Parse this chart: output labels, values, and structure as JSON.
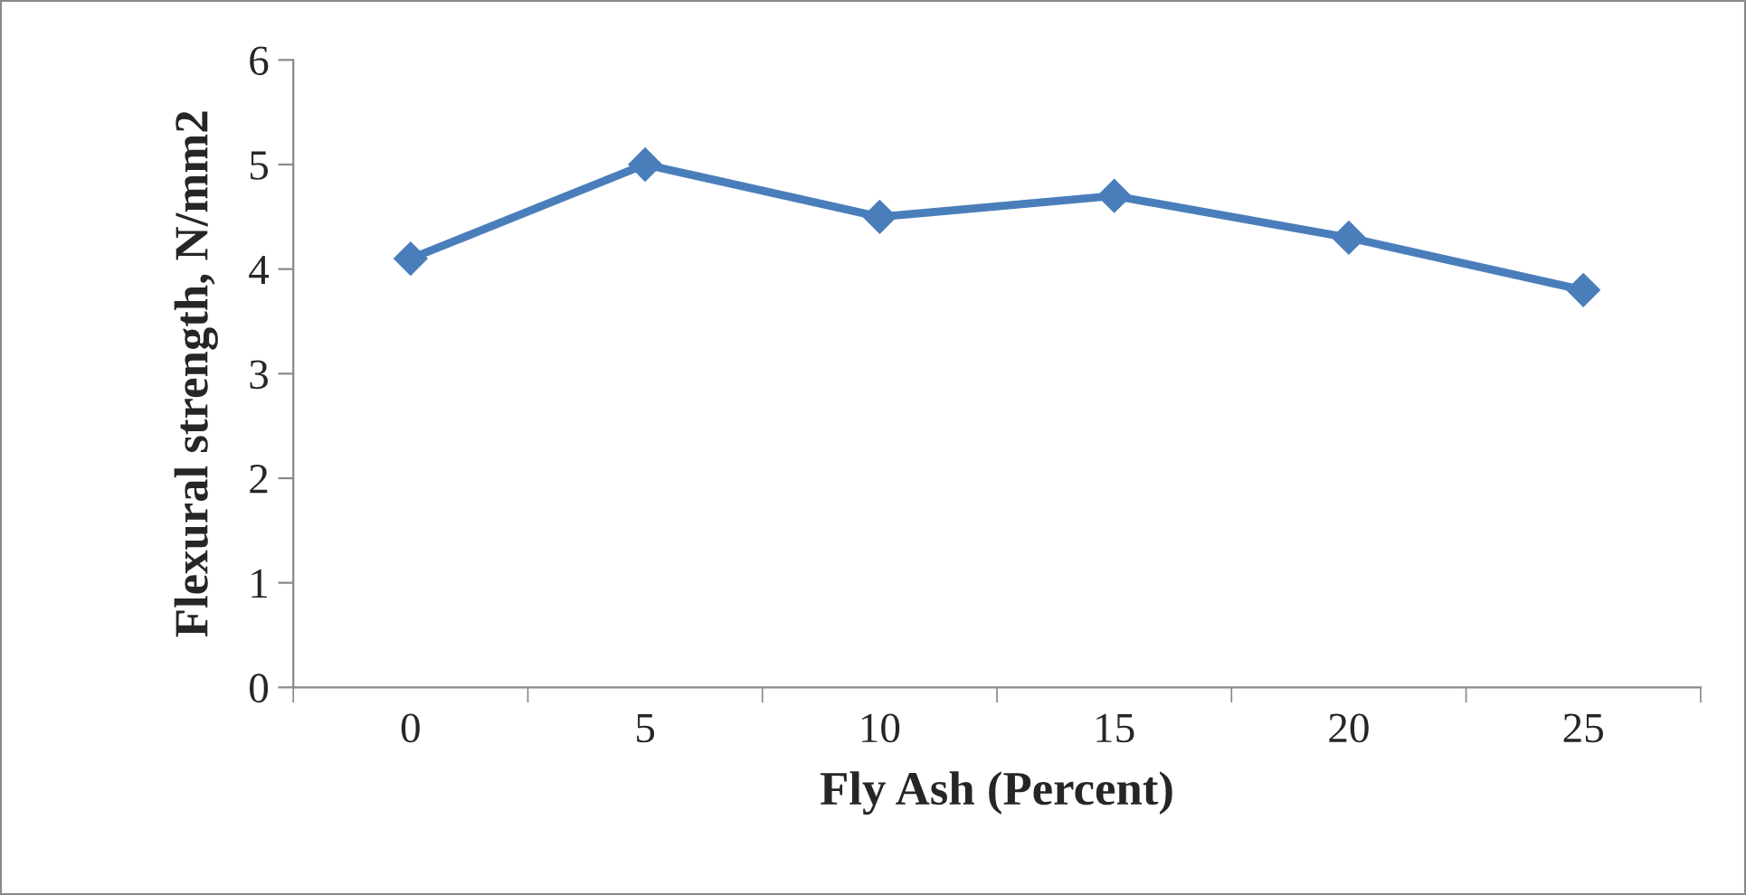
{
  "chart_data": {
    "type": "line",
    "xlabel": "Fly Ash (Percent)",
    "ylabel": "Flexural strength, N/mm2",
    "categories": [
      "0",
      "5",
      "10",
      "15",
      "20",
      "25"
    ],
    "series": [
      {
        "color": "#4a7ebb",
        "values": [
          4.1,
          5.0,
          4.5,
          4.7,
          4.3,
          3.8
        ]
      }
    ],
    "ylim": [
      0,
      6
    ],
    "yticks": [
      0,
      1,
      2,
      3,
      4,
      5,
      6
    ],
    "grid": false,
    "legend": false,
    "marker": "diamond",
    "line_style": "solid"
  }
}
